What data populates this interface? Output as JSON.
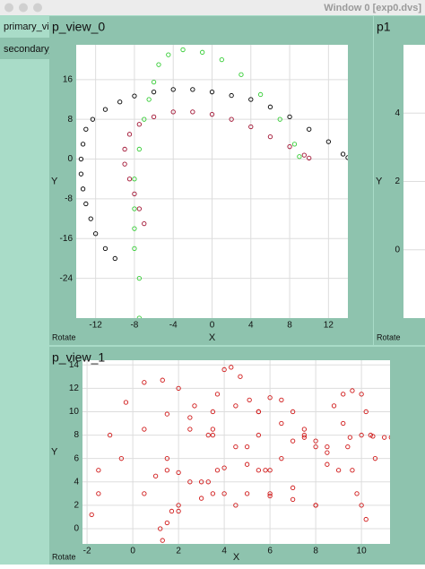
{
  "window": {
    "title": "Window 0 [exp0.dvs]",
    "tabs": [
      "primary_vi",
      "secondary_"
    ]
  },
  "chart_data": [
    {
      "type": "scatter",
      "title": "p_view_0",
      "xlabel": "X",
      "ylabel": "Y",
      "button": "Rotate",
      "xlim": [
        -14,
        14
      ],
      "ylim": [
        -32,
        23
      ],
      "xticks": [
        -12,
        -8,
        -4,
        0,
        4,
        8,
        12
      ],
      "yticks": [
        -24,
        -16,
        -8,
        0,
        8,
        16
      ],
      "grid": true,
      "series": [
        {
          "color": "#000000",
          "x": [
            -10,
            -11,
            -12,
            -12.5,
            -13,
            -13.3,
            -13.5,
            -13.5,
            -13.3,
            -13,
            -12.3,
            -11,
            -9.5,
            -8,
            -6,
            -4,
            -2,
            0,
            2,
            4,
            6,
            8,
            10,
            12,
            13.5,
            14
          ],
          "values": [
            -20,
            -18,
            -15,
            -12,
            -9,
            -6,
            -3,
            0,
            3,
            6,
            8,
            10,
            11.5,
            12.7,
            13.5,
            14,
            14,
            13.5,
            12.8,
            12,
            10.5,
            8.5,
            6,
            3.5,
            1,
            0.3
          ]
        },
        {
          "color": "#33cc33",
          "x": [
            -7.5,
            -7.5,
            -8,
            -8,
            -8,
            -8,
            -7.5,
            -7,
            -6.5,
            -6,
            -5.5,
            -4.5,
            -3,
            -1,
            1,
            3,
            5,
            7,
            8.5,
            9
          ],
          "values": [
            -32,
            -24,
            -18,
            -14,
            -10,
            -4,
            2,
            8,
            12,
            15.5,
            19,
            21,
            22,
            21.5,
            20,
            17,
            13,
            8,
            3,
            0.5
          ]
        },
        {
          "color": "#a01030",
          "x": [
            -7,
            -7.5,
            -8,
            -8.5,
            -9,
            -9,
            -8.5,
            -7.5,
            -6,
            -4,
            -2,
            0,
            2,
            4,
            6,
            8,
            9.5,
            10
          ],
          "values": [
            -13,
            -10,
            -7,
            -4,
            -1,
            2,
            5,
            7,
            8.5,
            9.5,
            9.5,
            9,
            8,
            6.5,
            4.5,
            2.5,
            0.8,
            0.2
          ]
        }
      ]
    },
    {
      "type": "scatter",
      "title": "p1",
      "ylabel": "Y",
      "button": "Rotate",
      "ylim": [
        -2,
        6
      ],
      "yticks": [
        0,
        2,
        4
      ],
      "grid": true,
      "series": []
    },
    {
      "type": "scatter",
      "title": "p_view_1",
      "xlabel": "X",
      "ylabel": "Y",
      "button": "Rotate",
      "xlim": [
        -2.2,
        11.25
      ],
      "ylim": [
        -1.3,
        14.4
      ],
      "xticks": [
        -2,
        0,
        2,
        4,
        6,
        8,
        10
      ],
      "yticks": [
        0,
        2,
        4,
        6,
        8,
        10,
        12,
        14
      ],
      "grid": true,
      "series": [
        {
          "color": "#d01818",
          "x": [
            -1.8,
            -1.5,
            -1,
            -0.3,
            0.5,
            1.3,
            2,
            2.7,
            3.3,
            3.7
          ],
          "values": [
            1.2,
            5,
            8,
            10.8,
            12.5,
            12.7,
            12,
            10.5,
            8,
            5
          ]
        },
        {
          "color": "#d01818",
          "x": [
            3.3,
            3.5,
            3.7,
            4,
            4.3,
            4.7,
            5.1,
            5.5,
            5.8
          ],
          "values": [
            4,
            8,
            11.5,
            13.6,
            13.8,
            13,
            11,
            8,
            5
          ]
        },
        {
          "color": "#d01818",
          "x": [
            -1.5,
            -0.5,
            0.5,
            1.5,
            2.5,
            3.5,
            4.5,
            5.5
          ],
          "values": [
            3,
            6,
            8.5,
            9.8,
            9.5,
            8.5,
            7,
            5
          ]
        },
        {
          "color": "#d01818",
          "x": [
            1.5,
            2.5,
            3.5,
            4.5,
            5.5,
            6.5,
            7.5,
            8.5
          ],
          "values": [
            6,
            8.5,
            10,
            10.5,
            10,
            9,
            8,
            7
          ]
        },
        {
          "color": "#d01818",
          "x": [
            5,
            5.5,
            6,
            6.5,
            7,
            7.5,
            8,
            8.5
          ],
          "values": [
            7,
            10,
            11.2,
            11,
            10,
            8.5,
            7,
            5.5
          ]
        },
        {
          "color": "#d01818",
          "x": [
            8.8,
            9.2,
            9.6,
            10,
            10.2,
            10.4,
            10.6
          ],
          "values": [
            10.5,
            11.5,
            11.8,
            11.5,
            10,
            8,
            6
          ]
        },
        {
          "color": "#d01818",
          "x": [
            9.5,
            10,
            10.5,
            11,
            11.3
          ],
          "values": [
            7.8,
            8,
            7.9,
            7.8,
            7.8
          ]
        },
        {
          "color": "#d01818",
          "x": [
            1.2,
            2,
            3,
            4,
            5,
            6,
            7,
            8
          ],
          "values": [
            0,
            1.5,
            2.6,
            3,
            3,
            2.8,
            2.5,
            2
          ]
        },
        {
          "color": "#d01818",
          "x": [
            2,
            3,
            4,
            5,
            6,
            7,
            8
          ],
          "values": [
            2,
            4,
            5.2,
            5.5,
            5,
            3.5,
            2
          ]
        },
        {
          "color": "#d01818",
          "x": [
            0.5,
            1,
            1.5,
            2,
            2.5,
            3.5,
            4.5
          ],
          "values": [
            3,
            4.5,
            5,
            4.8,
            4,
            3,
            2
          ]
        },
        {
          "color": "#d01818",
          "x": [
            9.2,
            9.4,
            9.6,
            9.8,
            10,
            10.2
          ],
          "values": [
            9,
            7,
            5,
            3,
            2,
            0.8
          ]
        },
        {
          "color": "#d01818",
          "x": [
            6,
            6.5,
            7,
            7.5,
            8,
            8.5,
            9
          ],
          "values": [
            3,
            6,
            7.5,
            7.8,
            7.5,
            6.5,
            5
          ]
        },
        {
          "color": "#d01818",
          "x": [
            1.3,
            1.5,
            1.7
          ],
          "values": [
            -1,
            0.5,
            1.5
          ]
        }
      ]
    }
  ]
}
